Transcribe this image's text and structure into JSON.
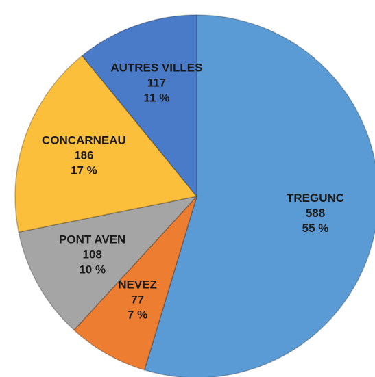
{
  "chart_data": {
    "type": "pie",
    "categories": [
      "TREGUNC",
      "NEVEZ",
      "PONT AVEN",
      "CONCARNEAU",
      "AUTRES VILLES"
    ],
    "values": [
      588,
      77,
      108,
      186,
      117
    ],
    "percent_labels": [
      "55 %",
      "7 %",
      "10 %",
      "17 %",
      "11 %"
    ],
    "colors": [
      "#5b9bd5",
      "#ed7d31",
      "#a5a5a5",
      "#fbbf3b",
      "#4a7bc8"
    ]
  }
}
